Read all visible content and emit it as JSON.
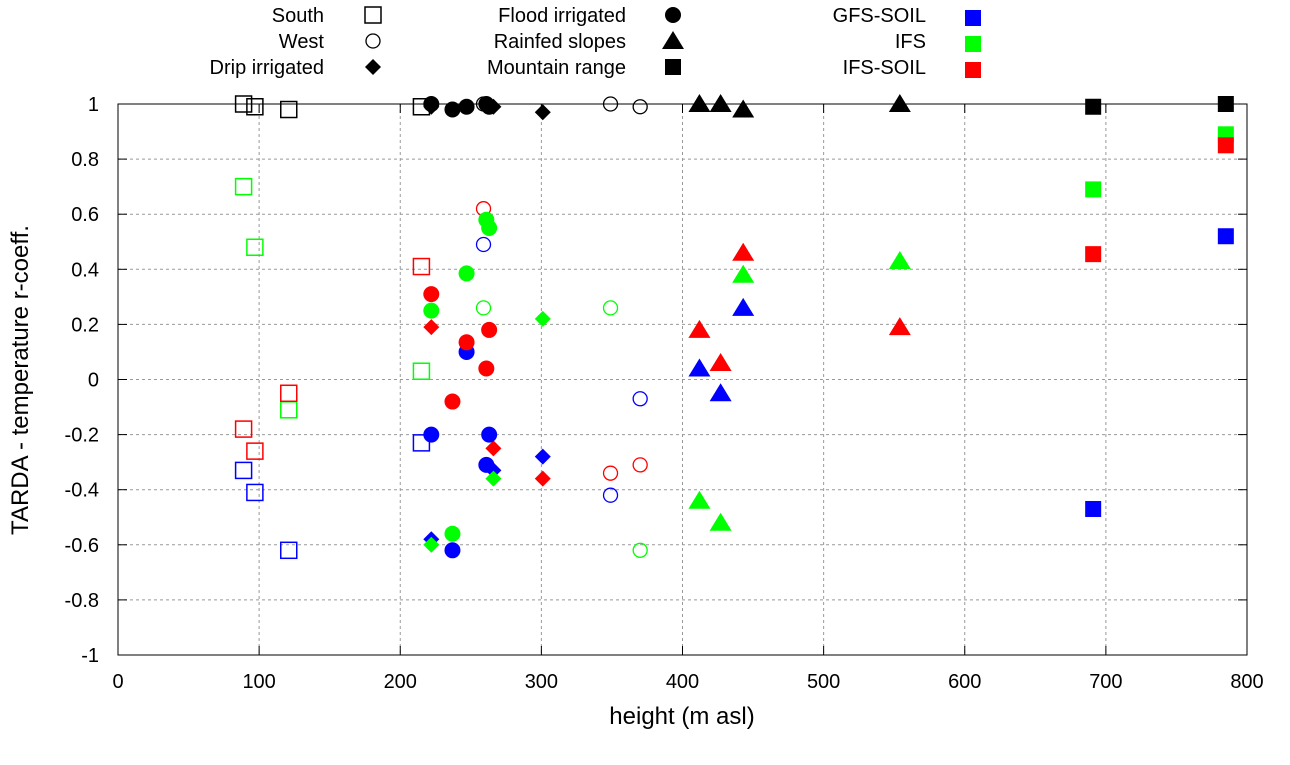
{
  "chart_data": {
    "type": "scatter",
    "title": "",
    "xlabel": "height (m asl)",
    "ylabel": "TARDA - temperature r-coeff.",
    "xlim": [
      0,
      800
    ],
    "ylim": [
      -1,
      1
    ],
    "xticks": [
      "0",
      "100",
      "200",
      "300",
      "400",
      "500",
      "600",
      "700",
      "800"
    ],
    "yticks": [
      "-1",
      "-0.8",
      "-0.6",
      "-0.4",
      "-0.2",
      "0",
      "0.2",
      "0.4",
      "0.6",
      "0.8",
      "1"
    ],
    "grid": true,
    "legend_placement": "top",
    "legend": {
      "shapes": [
        {
          "label": "South",
          "shape": "open-square"
        },
        {
          "label": "West",
          "shape": "open-circle"
        },
        {
          "label": "Drip irrigated",
          "shape": "diamond"
        },
        {
          "label": "Flood irrigated",
          "shape": "circle"
        },
        {
          "label": "Rainfed slopes",
          "shape": "triangle"
        },
        {
          "label": "Mountain range",
          "shape": "square"
        }
      ],
      "colors": [
        {
          "label": "GFS-SOIL",
          "color": "#0000ff"
        },
        {
          "label": "IFS",
          "color": "#00ff00"
        },
        {
          "label": "IFS-SOIL",
          "color": "#ff0000"
        }
      ]
    },
    "colors": {
      "black": "#000000",
      "gfs_soil": "#0000ff",
      "ifs": "#00ff00",
      "ifs_soil": "#ff0000"
    },
    "stations": [
      {
        "group": "South",
        "shape": "open-square",
        "x": 89,
        "black": 1.0,
        "ifs": 0.7,
        "ifs_soil": -0.18,
        "gfs_soil": -0.33
      },
      {
        "group": "South",
        "shape": "open-square",
        "x": 97,
        "black": 0.99,
        "ifs": 0.48,
        "ifs_soil": -0.26,
        "gfs_soil": -0.41
      },
      {
        "group": "South",
        "shape": "open-square",
        "x": 121,
        "black": 0.98,
        "ifs": -0.11,
        "ifs_soil": -0.05,
        "gfs_soil": -0.62
      },
      {
        "group": "South",
        "shape": "open-square",
        "x": 215,
        "black": 0.99,
        "ifs": 0.03,
        "ifs_soil": 0.41,
        "gfs_soil": -0.23
      },
      {
        "group": "West",
        "shape": "open-circle",
        "x": 259,
        "black": 1.0,
        "ifs": 0.26,
        "ifs_soil": 0.62,
        "gfs_soil": 0.49
      },
      {
        "group": "West",
        "shape": "open-circle",
        "x": 349,
        "black": 1.0,
        "ifs": 0.26,
        "ifs_soil": -0.34,
        "gfs_soil": -0.42
      },
      {
        "group": "West",
        "shape": "open-circle",
        "x": 370,
        "black": 0.99,
        "ifs": -0.62,
        "ifs_soil": -0.31,
        "gfs_soil": -0.07
      },
      {
        "group": "Drip irrigated",
        "shape": "diamond",
        "x": 222,
        "black": 0.99,
        "ifs": -0.6,
        "ifs_soil": 0.19,
        "gfs_soil": -0.58
      },
      {
        "group": "Drip irrigated",
        "shape": "diamond",
        "x": 266,
        "black": 0.99,
        "ifs": -0.36,
        "ifs_soil": -0.25,
        "gfs_soil": -0.33
      },
      {
        "group": "Drip irrigated",
        "shape": "diamond",
        "x": 301,
        "black": 0.97,
        "ifs": 0.22,
        "ifs_soil": -0.36,
        "gfs_soil": -0.28
      },
      {
        "group": "Flood irrigated",
        "shape": "circle",
        "x": 222,
        "black": 1.0,
        "ifs": 0.25,
        "ifs_soil": 0.31,
        "gfs_soil": -0.2
      },
      {
        "group": "Flood irrigated",
        "shape": "circle",
        "x": 237,
        "black": 0.98,
        "ifs": -0.56,
        "ifs_soil": -0.08,
        "gfs_soil": -0.62
      },
      {
        "group": "Flood irrigated",
        "shape": "circle",
        "x": 247,
        "black": 0.99,
        "ifs": 0.385,
        "ifs_soil": 0.135,
        "gfs_soil": 0.1
      },
      {
        "group": "Flood irrigated",
        "shape": "circle",
        "x": 261,
        "black": 1.0,
        "ifs": 0.58,
        "ifs_soil": 0.04,
        "gfs_soil": -0.31
      },
      {
        "group": "Flood irrigated",
        "shape": "circle",
        "x": 263,
        "black": 0.99,
        "ifs": 0.55,
        "ifs_soil": 0.18,
        "gfs_soil": -0.2
      },
      {
        "group": "Rainfed slopes",
        "shape": "triangle",
        "x": 412,
        "black": 1.0,
        "ifs": -0.44,
        "ifs_soil": 0.18,
        "gfs_soil": 0.04
      },
      {
        "group": "Rainfed slopes",
        "shape": "triangle",
        "x": 427,
        "black": 1.0,
        "ifs": -0.52,
        "ifs_soil": 0.06,
        "gfs_soil": -0.05
      },
      {
        "group": "Rainfed slopes",
        "shape": "triangle",
        "x": 443,
        "black": 0.98,
        "ifs": 0.38,
        "ifs_soil": 0.46,
        "gfs_soil": 0.26
      },
      {
        "group": "Rainfed slopes",
        "shape": "triangle",
        "x": 554,
        "black": 1.0,
        "ifs": 0.43,
        "ifs_soil": 0.19
      },
      {
        "group": "Mountain range",
        "shape": "square",
        "x": 691,
        "black": 0.99,
        "ifs": 0.69,
        "ifs_soil": 0.455,
        "gfs_soil": -0.47
      },
      {
        "group": "Mountain range",
        "shape": "square",
        "x": 785,
        "black": 1.0,
        "ifs": 0.89,
        "ifs_soil": 0.85,
        "gfs_soil": 0.52
      }
    ]
  }
}
